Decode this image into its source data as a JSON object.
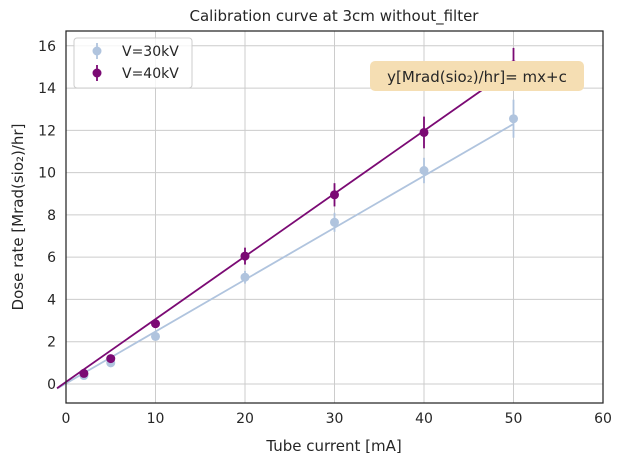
{
  "chart_data": {
    "type": "scatter",
    "title": "Calibration curve at 3cm without_filter",
    "xlabel": "Tube current [mA]",
    "ylabel": "Dose rate [Mrad(sio₂)/hr]",
    "xlim": [
      0,
      60
    ],
    "ylim": [
      -0.9,
      16.7
    ],
    "xticks": [
      0,
      10,
      20,
      30,
      40,
      50,
      60
    ],
    "yticks": [
      0,
      2,
      4,
      6,
      8,
      10,
      12,
      14,
      16
    ],
    "grid": true,
    "legend_position": "top-left",
    "annotation": {
      "text": "y[Mrad(sio₂)/hr]= mx+c",
      "background": "#f5deb3"
    },
    "series": [
      {
        "name": "V=30kV",
        "color": "#b0c4de",
        "x": [
          2,
          5,
          10,
          20,
          30,
          40,
          50
        ],
        "y": [
          0.4,
          1.0,
          2.25,
          5.05,
          7.65,
          10.1,
          12.55
        ],
        "yerr": [
          0.1,
          0.1,
          0.15,
          0.3,
          0.45,
          0.6,
          0.9
        ],
        "fit": {
          "x": [
            -1,
            50
          ],
          "y": [
            -0.22,
            12.3
          ]
        }
      },
      {
        "name": "V=40kV",
        "color": "#7b0a74",
        "x": [
          2,
          5,
          10,
          20,
          30,
          40,
          50
        ],
        "y": [
          0.5,
          1.2,
          2.85,
          6.05,
          8.95,
          11.9,
          15.1
        ],
        "yerr": [
          0.1,
          0.12,
          0.2,
          0.4,
          0.55,
          0.75,
          0.8
        ],
        "fit": {
          "x": [
            -1,
            50
          ],
          "y": [
            -0.2,
            14.95
          ]
        }
      }
    ]
  }
}
